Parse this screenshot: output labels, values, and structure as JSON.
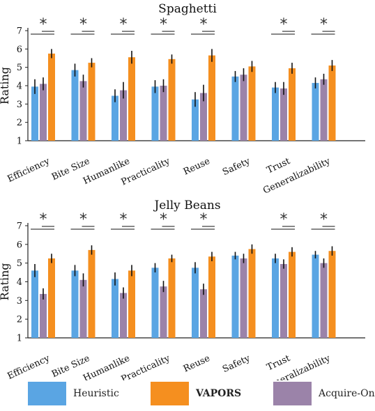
{
  "colors": {
    "heuristic": "#5aa5e3",
    "vapors": "#f58f1f",
    "acquire_only": "#9b83a9",
    "sig_line": "#888888"
  },
  "legend": [
    {
      "key": "heuristic",
      "label": "Heuristic"
    },
    {
      "key": "vapors",
      "label": "VAPORS"
    },
    {
      "key": "acquire_only",
      "label": "Acquire-Only"
    }
  ],
  "chart_data": [
    {
      "type": "bar",
      "title": "Spaghetti",
      "ylabel": "Rating",
      "xlabel": "",
      "ylim": [
        1,
        7
      ],
      "yticks": [
        1,
        2,
        3,
        4,
        5,
        6,
        7
      ],
      "categories": [
        "Efficiency",
        "Bite Size",
        "Humanlike",
        "Practicality",
        "Reuse",
        "Safety",
        "Trust",
        "Generalizability"
      ],
      "series": [
        {
          "name": "Heuristic",
          "key": "heuristic",
          "values": [
            3.95,
            4.85,
            3.45,
            3.95,
            3.25,
            4.5,
            3.9,
            4.15
          ],
          "errors": [
            0.4,
            0.35,
            0.35,
            0.35,
            0.4,
            0.3,
            0.3,
            0.3
          ]
        },
        {
          "name": "Acquire-Only",
          "key": "acquire_only",
          "values": [
            4.1,
            4.25,
            3.75,
            4.0,
            3.6,
            4.6,
            3.85,
            4.35
          ],
          "errors": [
            0.35,
            0.35,
            0.45,
            0.35,
            0.45,
            0.35,
            0.35,
            0.3
          ]
        },
        {
          "name": "VAPORS",
          "key": "vapors",
          "values": [
            5.75,
            5.25,
            5.55,
            5.45,
            5.65,
            5.05,
            4.95,
            5.1
          ],
          "errors": [
            0.25,
            0.25,
            0.35,
            0.25,
            0.35,
            0.3,
            0.3,
            0.3
          ]
        }
      ],
      "significance": [
        {
          "category": "Efficiency",
          "marker": "*"
        },
        {
          "category": "Bite Size",
          "marker": "*"
        },
        {
          "category": "Humanlike",
          "marker": "*"
        },
        {
          "category": "Practicality",
          "marker": "*"
        },
        {
          "category": "Reuse",
          "marker": "*"
        },
        {
          "category": "Trust",
          "marker": "*"
        },
        {
          "category": "Generalizability",
          "marker": "*"
        }
      ]
    },
    {
      "type": "bar",
      "title": "Jelly Beans",
      "ylabel": "Rating",
      "xlabel": "",
      "ylim": [
        1,
        7
      ],
      "yticks": [
        1,
        2,
        3,
        4,
        5,
        6,
        7
      ],
      "categories": [
        "Efficiency",
        "Bite Size",
        "Humanlike",
        "Practicality",
        "Reuse",
        "Safety",
        "Trust",
        "Generalizability"
      ],
      "series": [
        {
          "name": "Heuristic",
          "key": "heuristic",
          "values": [
            4.6,
            4.6,
            4.15,
            4.75,
            4.75,
            5.4,
            5.25,
            5.45
          ],
          "errors": [
            0.35,
            0.3,
            0.35,
            0.25,
            0.3,
            0.2,
            0.25,
            0.2
          ]
        },
        {
          "name": "Acquire-Only",
          "key": "acquire_only",
          "values": [
            3.35,
            4.1,
            3.4,
            3.75,
            3.6,
            5.25,
            4.95,
            5.0
          ],
          "errors": [
            0.3,
            0.35,
            0.3,
            0.3,
            0.3,
            0.25,
            0.25,
            0.25
          ]
        },
        {
          "name": "VAPORS",
          "key": "vapors",
          "values": [
            5.25,
            5.7,
            4.6,
            5.25,
            5.35,
            5.75,
            5.6,
            5.65
          ],
          "errors": [
            0.25,
            0.25,
            0.3,
            0.2,
            0.25,
            0.25,
            0.25,
            0.25
          ]
        }
      ],
      "significance": [
        {
          "category": "Efficiency",
          "marker": "*"
        },
        {
          "category": "Bite Size",
          "marker": "*"
        },
        {
          "category": "Humanlike",
          "marker": "*"
        },
        {
          "category": "Practicality",
          "marker": "*"
        },
        {
          "category": "Reuse",
          "marker": "*"
        },
        {
          "category": "Trust",
          "marker": "*"
        },
        {
          "category": "Generalizability",
          "marker": "*"
        }
      ]
    }
  ]
}
